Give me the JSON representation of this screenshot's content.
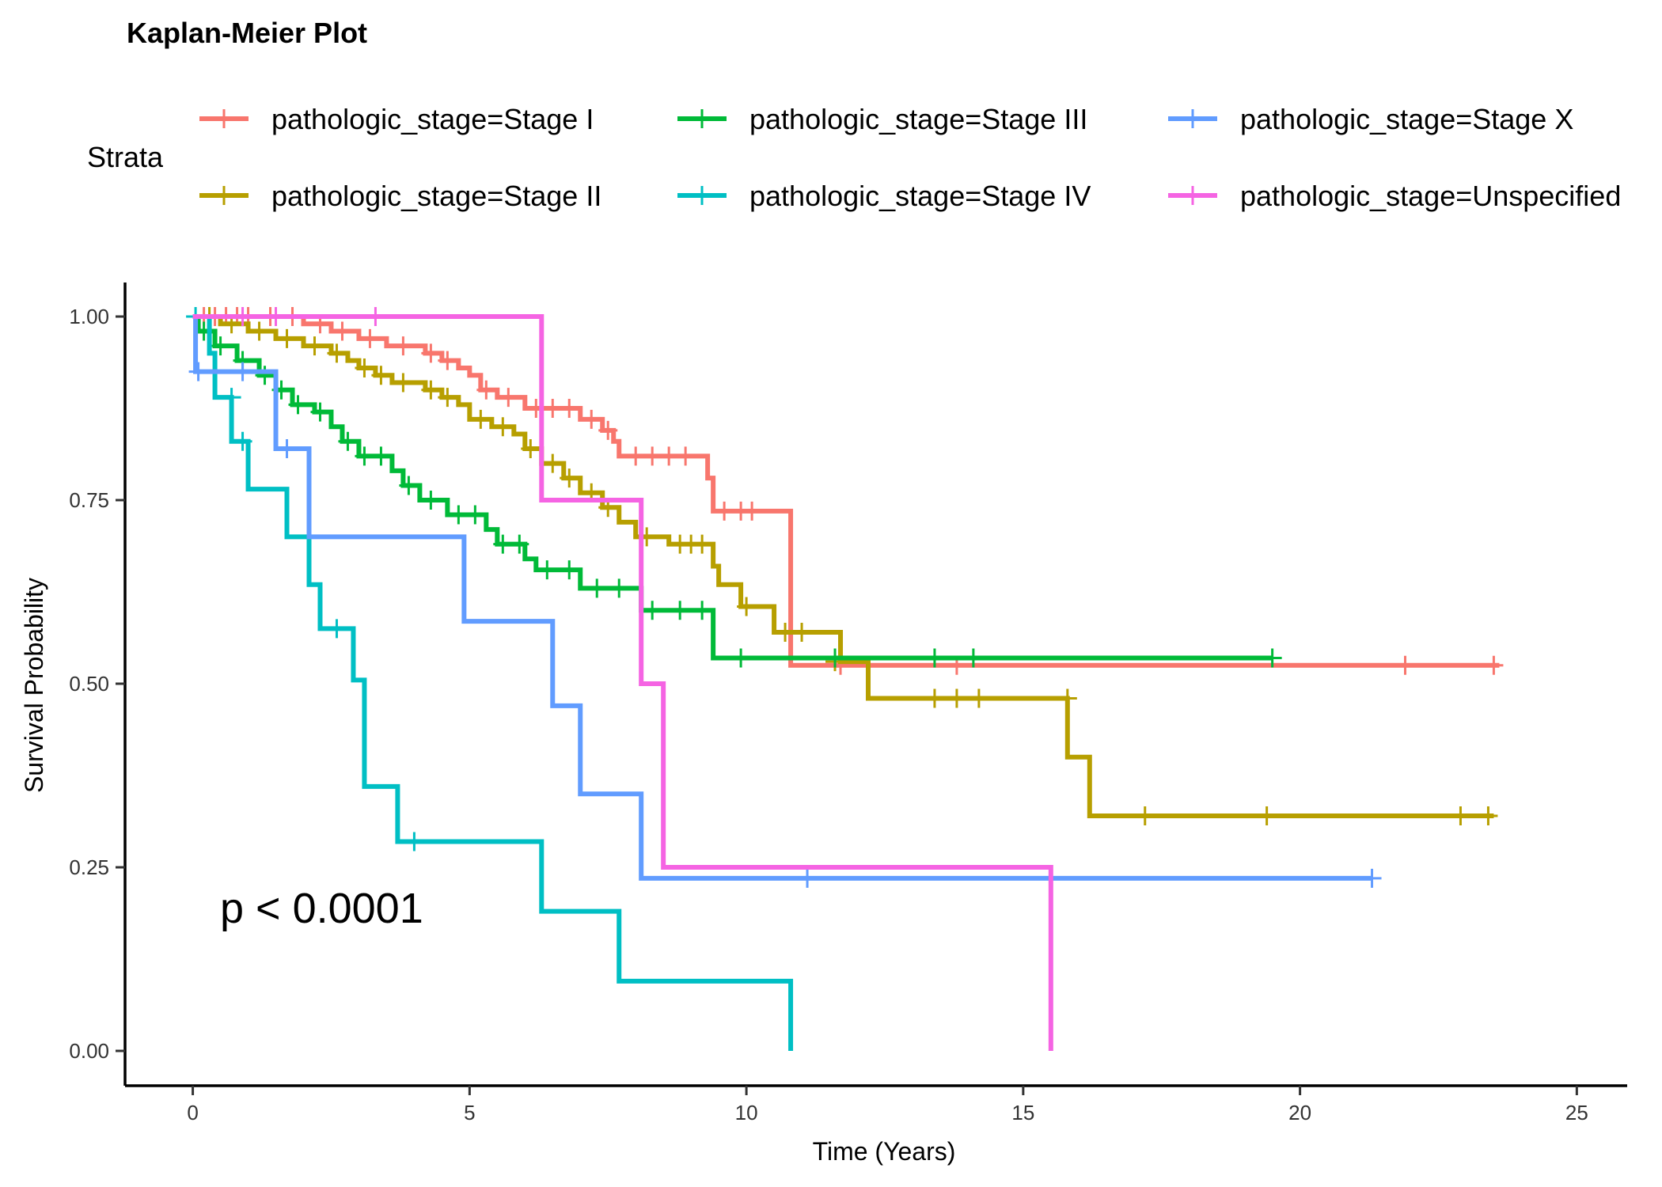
{
  "chart_data": {
    "type": "line",
    "title": "Kaplan-Meier Plot",
    "xlabel": "Time (Years)",
    "ylabel": "Survival Probability",
    "xlim": [
      -1.2,
      26.2
    ],
    "ylim": [
      -0.05,
      1.05
    ],
    "x_ticks": [
      0,
      5,
      10,
      15,
      20,
      25
    ],
    "y_ticks": [
      0,
      0.25,
      0.5,
      0.75,
      1.0
    ],
    "x_tick_labels": [
      "0",
      "5",
      "10",
      "15",
      "20",
      "25"
    ],
    "y_tick_labels": [
      "0.00",
      "0.25",
      "0.50",
      "0.75",
      "1.00"
    ],
    "legend_title": "Strata",
    "legend_position": "top",
    "annotation": "p < 0.0001",
    "grid": false,
    "series": [
      {
        "name": "pathologic_stage=Stage I",
        "color": "#F8766D",
        "steps": [
          [
            0,
            1.0
          ],
          [
            2.0,
            0.99
          ],
          [
            2.5,
            0.98
          ],
          [
            3.0,
            0.97
          ],
          [
            3.5,
            0.96
          ],
          [
            4.2,
            0.95
          ],
          [
            4.5,
            0.94
          ],
          [
            4.8,
            0.93
          ],
          [
            5.0,
            0.92
          ],
          [
            5.2,
            0.9
          ],
          [
            5.5,
            0.89
          ],
          [
            6.0,
            0.875
          ],
          [
            7.0,
            0.86
          ],
          [
            7.4,
            0.845
          ],
          [
            7.6,
            0.83
          ],
          [
            7.7,
            0.81
          ],
          [
            9.3,
            0.78
          ],
          [
            9.4,
            0.735
          ],
          [
            10.8,
            0.525
          ],
          [
            23.6,
            0.525
          ]
        ],
        "censor": [
          [
            0.2,
            1.0
          ],
          [
            0.4,
            1.0
          ],
          [
            0.6,
            1.0
          ],
          [
            0.8,
            1.0
          ],
          [
            1.0,
            1.0
          ],
          [
            1.4,
            1.0
          ],
          [
            1.8,
            1.0
          ],
          [
            2.3,
            0.99
          ],
          [
            2.7,
            0.98
          ],
          [
            3.2,
            0.97
          ],
          [
            3.8,
            0.96
          ],
          [
            4.3,
            0.95
          ],
          [
            4.6,
            0.94
          ],
          [
            5.3,
            0.9
          ],
          [
            5.7,
            0.89
          ],
          [
            6.2,
            0.875
          ],
          [
            6.5,
            0.875
          ],
          [
            6.8,
            0.875
          ],
          [
            7.2,
            0.86
          ],
          [
            7.5,
            0.845
          ],
          [
            8.0,
            0.81
          ],
          [
            8.3,
            0.81
          ],
          [
            8.6,
            0.81
          ],
          [
            8.9,
            0.81
          ],
          [
            9.6,
            0.735
          ],
          [
            9.9,
            0.735
          ],
          [
            10.1,
            0.735
          ],
          [
            11.7,
            0.525
          ],
          [
            13.8,
            0.525
          ],
          [
            21.9,
            0.525
          ],
          [
            23.5,
            0.525
          ]
        ]
      },
      {
        "name": "pathologic_stage=Stage II",
        "color": "#B79F00",
        "steps": [
          [
            0,
            1.0
          ],
          [
            0.5,
            0.99
          ],
          [
            1.0,
            0.98
          ],
          [
            1.5,
            0.97
          ],
          [
            2.0,
            0.96
          ],
          [
            2.5,
            0.95
          ],
          [
            2.8,
            0.94
          ],
          [
            3.0,
            0.93
          ],
          [
            3.3,
            0.92
          ],
          [
            3.6,
            0.91
          ],
          [
            4.2,
            0.9
          ],
          [
            4.5,
            0.89
          ],
          [
            4.8,
            0.88
          ],
          [
            5.0,
            0.86
          ],
          [
            5.4,
            0.85
          ],
          [
            5.8,
            0.84
          ],
          [
            6.0,
            0.82
          ],
          [
            6.3,
            0.8
          ],
          [
            6.7,
            0.78
          ],
          [
            7.0,
            0.76
          ],
          [
            7.4,
            0.74
          ],
          [
            7.7,
            0.72
          ],
          [
            8.0,
            0.7
          ],
          [
            8.6,
            0.69
          ],
          [
            9.4,
            0.66
          ],
          [
            9.5,
            0.635
          ],
          [
            9.9,
            0.605
          ],
          [
            10.5,
            0.57
          ],
          [
            11.7,
            0.53
          ],
          [
            12.2,
            0.48
          ],
          [
            15.8,
            0.4
          ],
          [
            16.2,
            0.32
          ],
          [
            23.5,
            0.32
          ]
        ],
        "censor": [
          [
            0.3,
            1.0
          ],
          [
            0.7,
            0.99
          ],
          [
            1.2,
            0.98
          ],
          [
            1.7,
            0.97
          ],
          [
            2.2,
            0.96
          ],
          [
            2.6,
            0.95
          ],
          [
            3.1,
            0.93
          ],
          [
            3.4,
            0.92
          ],
          [
            3.8,
            0.91
          ],
          [
            4.3,
            0.9
          ],
          [
            4.6,
            0.89
          ],
          [
            5.2,
            0.86
          ],
          [
            5.6,
            0.85
          ],
          [
            6.1,
            0.82
          ],
          [
            6.5,
            0.8
          ],
          [
            6.8,
            0.78
          ],
          [
            7.2,
            0.76
          ],
          [
            7.5,
            0.74
          ],
          [
            8.2,
            0.7
          ],
          [
            8.8,
            0.69
          ],
          [
            9.0,
            0.69
          ],
          [
            9.2,
            0.69
          ],
          [
            10.0,
            0.605
          ],
          [
            10.7,
            0.57
          ],
          [
            11.0,
            0.57
          ],
          [
            11.6,
            0.53
          ],
          [
            13.4,
            0.48
          ],
          [
            13.8,
            0.48
          ],
          [
            14.2,
            0.48
          ],
          [
            15.8,
            0.48
          ],
          [
            17.2,
            0.32
          ],
          [
            19.4,
            0.32
          ],
          [
            22.9,
            0.32
          ],
          [
            23.4,
            0.32
          ]
        ]
      },
      {
        "name": "pathologic_stage=Stage III",
        "color": "#00BA38",
        "steps": [
          [
            0,
            1.0
          ],
          [
            0.1,
            0.98
          ],
          [
            0.4,
            0.96
          ],
          [
            0.8,
            0.94
          ],
          [
            1.2,
            0.92
          ],
          [
            1.5,
            0.9
          ],
          [
            1.8,
            0.88
          ],
          [
            2.2,
            0.87
          ],
          [
            2.5,
            0.85
          ],
          [
            2.7,
            0.83
          ],
          [
            3.0,
            0.81
          ],
          [
            3.6,
            0.79
          ],
          [
            3.8,
            0.77
          ],
          [
            4.1,
            0.75
          ],
          [
            4.6,
            0.73
          ],
          [
            5.3,
            0.71
          ],
          [
            5.5,
            0.69
          ],
          [
            6.0,
            0.67
          ],
          [
            6.2,
            0.655
          ],
          [
            7.0,
            0.63
          ],
          [
            8.1,
            0.6
          ],
          [
            9.4,
            0.535
          ],
          [
            19.5,
            0.535
          ]
        ],
        "censor": [
          [
            0.2,
            0.98
          ],
          [
            0.5,
            0.96
          ],
          [
            0.9,
            0.94
          ],
          [
            1.3,
            0.92
          ],
          [
            1.6,
            0.9
          ],
          [
            1.9,
            0.88
          ],
          [
            2.3,
            0.87
          ],
          [
            2.8,
            0.83
          ],
          [
            3.1,
            0.81
          ],
          [
            3.4,
            0.81
          ],
          [
            3.9,
            0.77
          ],
          [
            4.3,
            0.75
          ],
          [
            4.8,
            0.73
          ],
          [
            5.1,
            0.73
          ],
          [
            5.6,
            0.69
          ],
          [
            5.9,
            0.69
          ],
          [
            6.4,
            0.655
          ],
          [
            6.8,
            0.655
          ],
          [
            7.3,
            0.63
          ],
          [
            7.7,
            0.63
          ],
          [
            8.3,
            0.6
          ],
          [
            8.8,
            0.6
          ],
          [
            9.2,
            0.6
          ],
          [
            9.9,
            0.535
          ],
          [
            11.6,
            0.535
          ],
          [
            13.4,
            0.535
          ],
          [
            14.1,
            0.535
          ],
          [
            19.5,
            0.535
          ]
        ]
      },
      {
        "name": "pathologic_stage=Stage IV",
        "color": "#00BFC4",
        "steps": [
          [
            0,
            1.0
          ],
          [
            0.3,
            0.95
          ],
          [
            0.4,
            0.89
          ],
          [
            0.7,
            0.83
          ],
          [
            1.0,
            0.765
          ],
          [
            1.7,
            0.7
          ],
          [
            2.1,
            0.635
          ],
          [
            2.3,
            0.575
          ],
          [
            2.9,
            0.505
          ],
          [
            3.1,
            0.43
          ],
          [
            3.1,
            0.36
          ],
          [
            3.7,
            0.285
          ],
          [
            6.3,
            0.19
          ],
          [
            7.7,
            0.095
          ],
          [
            10.8,
            0.0
          ]
        ],
        "censor": [
          [
            0.05,
            1.0
          ],
          [
            0.7,
            0.89
          ],
          [
            0.9,
            0.83
          ],
          [
            2.6,
            0.575
          ],
          [
            4.0,
            0.285
          ]
        ]
      },
      {
        "name": "pathologic_stage=Stage X",
        "color": "#619CFF",
        "steps": [
          [
            0,
            1.0
          ],
          [
            0.05,
            0.925
          ],
          [
            1.5,
            0.82
          ],
          [
            2.1,
            0.7
          ],
          [
            4.9,
            0.585
          ],
          [
            6.5,
            0.47
          ],
          [
            7.0,
            0.35
          ],
          [
            8.1,
            0.235
          ],
          [
            21.3,
            0.235
          ]
        ],
        "censor": [
          [
            0.1,
            0.925
          ],
          [
            0.9,
            0.925
          ],
          [
            1.7,
            0.82
          ],
          [
            11.1,
            0.235
          ],
          [
            21.3,
            0.235
          ]
        ]
      },
      {
        "name": "pathologic_stage=Unspecified",
        "color": "#F564E3",
        "steps": [
          [
            0,
            1.0
          ],
          [
            6.3,
            0.75
          ],
          [
            8.1,
            0.5
          ],
          [
            8.5,
            0.25
          ],
          [
            15.5,
            0.0
          ]
        ],
        "censor": [
          [
            0.9,
            1.0
          ],
          [
            1.5,
            1.0
          ],
          [
            3.3,
            1.0
          ]
        ]
      }
    ]
  }
}
